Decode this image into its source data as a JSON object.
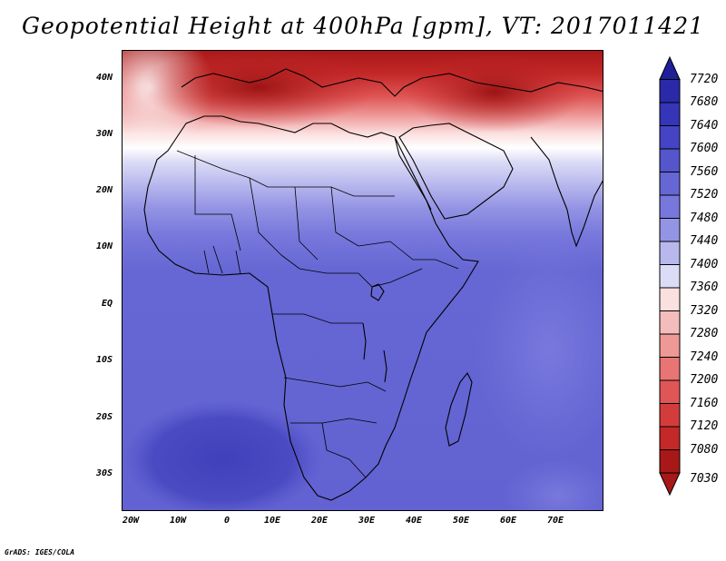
{
  "title": "Geopotential Height at 400hPa [gpm], VT: 2017011421",
  "lat_labels": [
    "40N",
    "30N",
    "20N",
    "10N",
    "EQ",
    "10S",
    "20S",
    "30S"
  ],
  "lon_labels": [
    "20W",
    "10W",
    "0",
    "10E",
    "20E",
    "30E",
    "40E",
    "50E",
    "60E",
    "70E"
  ],
  "colorbar": {
    "levels": [
      "7720",
      "7680",
      "7640",
      "7600",
      "7560",
      "7520",
      "7480",
      "7440",
      "7400",
      "7360",
      "7320",
      "7280",
      "7240",
      "7200",
      "7160",
      "7120",
      "7080",
      "7030"
    ],
    "colors": [
      "#1f1f9a",
      "#2a2aa8",
      "#3535b8",
      "#4444c4",
      "#5555cc",
      "#6666d4",
      "#7777dc",
      "#9494e4",
      "#b8b8ee",
      "#dcdcf6",
      "#fbe0e0",
      "#f4bcbc",
      "#ee9898",
      "#e87474",
      "#e05656",
      "#d43c3c",
      "#c42828",
      "#a81818"
    ]
  },
  "credit": "GrADS: IGES/COLA"
}
